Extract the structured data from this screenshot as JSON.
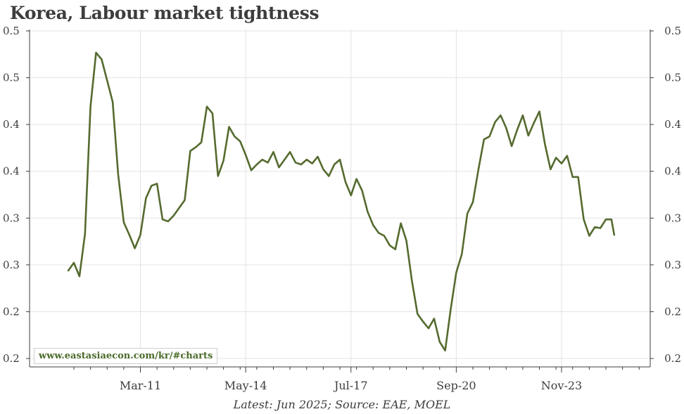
{
  "chart_data": {
    "type": "line",
    "title": "Korea, Labour market tightness",
    "x_ticks": [
      "Mar-11",
      "May-14",
      "Jul-17",
      "Sep-20",
      "Nov-23"
    ],
    "y_ticks_left": [
      "0.5",
      "0.5",
      "0.4",
      "0.4",
      "0.3",
      "0.3",
      "0.2",
      "0.2"
    ],
    "y_ticks_right": [
      "0.5",
      "0.5",
      "0.4",
      "0.4",
      "0.3",
      "0.3",
      "0.2",
      "0.2"
    ],
    "ylim": [
      0.165,
      0.515
    ],
    "xlim": [
      "2007-11",
      "2026-07"
    ],
    "grid": true,
    "line_color": "#556b2f",
    "series": [
      {
        "x": [
          "2009-01",
          "2009-03",
          "2009-05",
          "2009-07",
          "2009-09",
          "2009-11",
          "2010-01",
          "2010-03",
          "2010-05",
          "2010-07",
          "2010-09",
          "2010-11",
          "2011-01",
          "2011-03",
          "2011-05",
          "2011-07",
          "2011-09",
          "2011-11",
          "2012-01",
          "2012-03",
          "2012-05",
          "2012-07",
          "2012-09",
          "2012-11",
          "2013-01",
          "2013-03",
          "2013-05",
          "2013-07",
          "2013-09",
          "2013-11",
          "2014-01",
          "2014-03",
          "2014-05",
          "2014-07",
          "2014-09",
          "2014-11",
          "2015-01",
          "2015-03",
          "2015-05",
          "2015-07",
          "2015-09",
          "2015-11",
          "2016-01",
          "2016-03",
          "2016-05",
          "2016-07",
          "2016-09",
          "2016-11",
          "2017-01",
          "2017-03",
          "2017-05",
          "2017-07",
          "2017-09",
          "2017-11",
          "2018-01",
          "2018-03",
          "2018-05",
          "2018-07",
          "2018-09",
          "2018-11",
          "2019-01",
          "2019-03",
          "2019-05",
          "2019-07",
          "2019-09",
          "2019-11",
          "2020-01",
          "2020-03",
          "2020-05",
          "2020-07",
          "2020-09",
          "2020-11",
          "2021-01",
          "2021-03",
          "2021-05",
          "2021-07",
          "2021-09",
          "2021-11",
          "2022-01",
          "2022-03",
          "2022-05",
          "2022-07",
          "2022-09",
          "2022-11",
          "2023-01",
          "2023-03",
          "2023-05",
          "2023-07",
          "2023-09",
          "2023-11",
          "2024-01",
          "2024-03",
          "2024-05",
          "2024-07",
          "2024-09",
          "2024-11",
          "2025-01",
          "2025-03",
          "2025-05",
          "2025-06"
        ],
        "values": [
          0.265,
          0.273,
          0.259,
          0.303,
          0.435,
          0.491,
          0.484,
          0.462,
          0.44,
          0.364,
          0.315,
          0.302,
          0.288,
          0.302,
          0.34,
          0.353,
          0.355,
          0.318,
          0.316,
          0.322,
          0.33,
          0.338,
          0.389,
          0.393,
          0.398,
          0.435,
          0.428,
          0.363,
          0.379,
          0.414,
          0.404,
          0.399,
          0.385,
          0.369,
          0.375,
          0.38,
          0.377,
          0.388,
          0.372,
          0.38,
          0.388,
          0.377,
          0.375,
          0.38,
          0.376,
          0.383,
          0.37,
          0.363,
          0.375,
          0.38,
          0.357,
          0.343,
          0.36,
          0.348,
          0.326,
          0.312,
          0.304,
          0.301,
          0.291,
          0.287,
          0.314,
          0.296,
          0.254,
          0.22,
          0.212,
          0.205,
          0.215,
          0.191,
          0.182,
          0.225,
          0.263,
          0.282,
          0.324,
          0.336,
          0.37,
          0.401,
          0.404,
          0.419,
          0.426,
          0.413,
          0.394,
          0.411,
          0.426,
          0.405,
          0.418,
          0.43,
          0.396,
          0.37,
          0.382,
          0.376,
          0.384,
          0.362,
          0.362,
          0.318,
          0.301,
          0.31,
          0.309,
          0.318,
          0.318,
          0.302
        ]
      }
    ],
    "source_note": "Latest: Jun 2025; Source: EAE, MOEL",
    "watermark": "www.eastasiaecon.com/kr/#charts"
  }
}
